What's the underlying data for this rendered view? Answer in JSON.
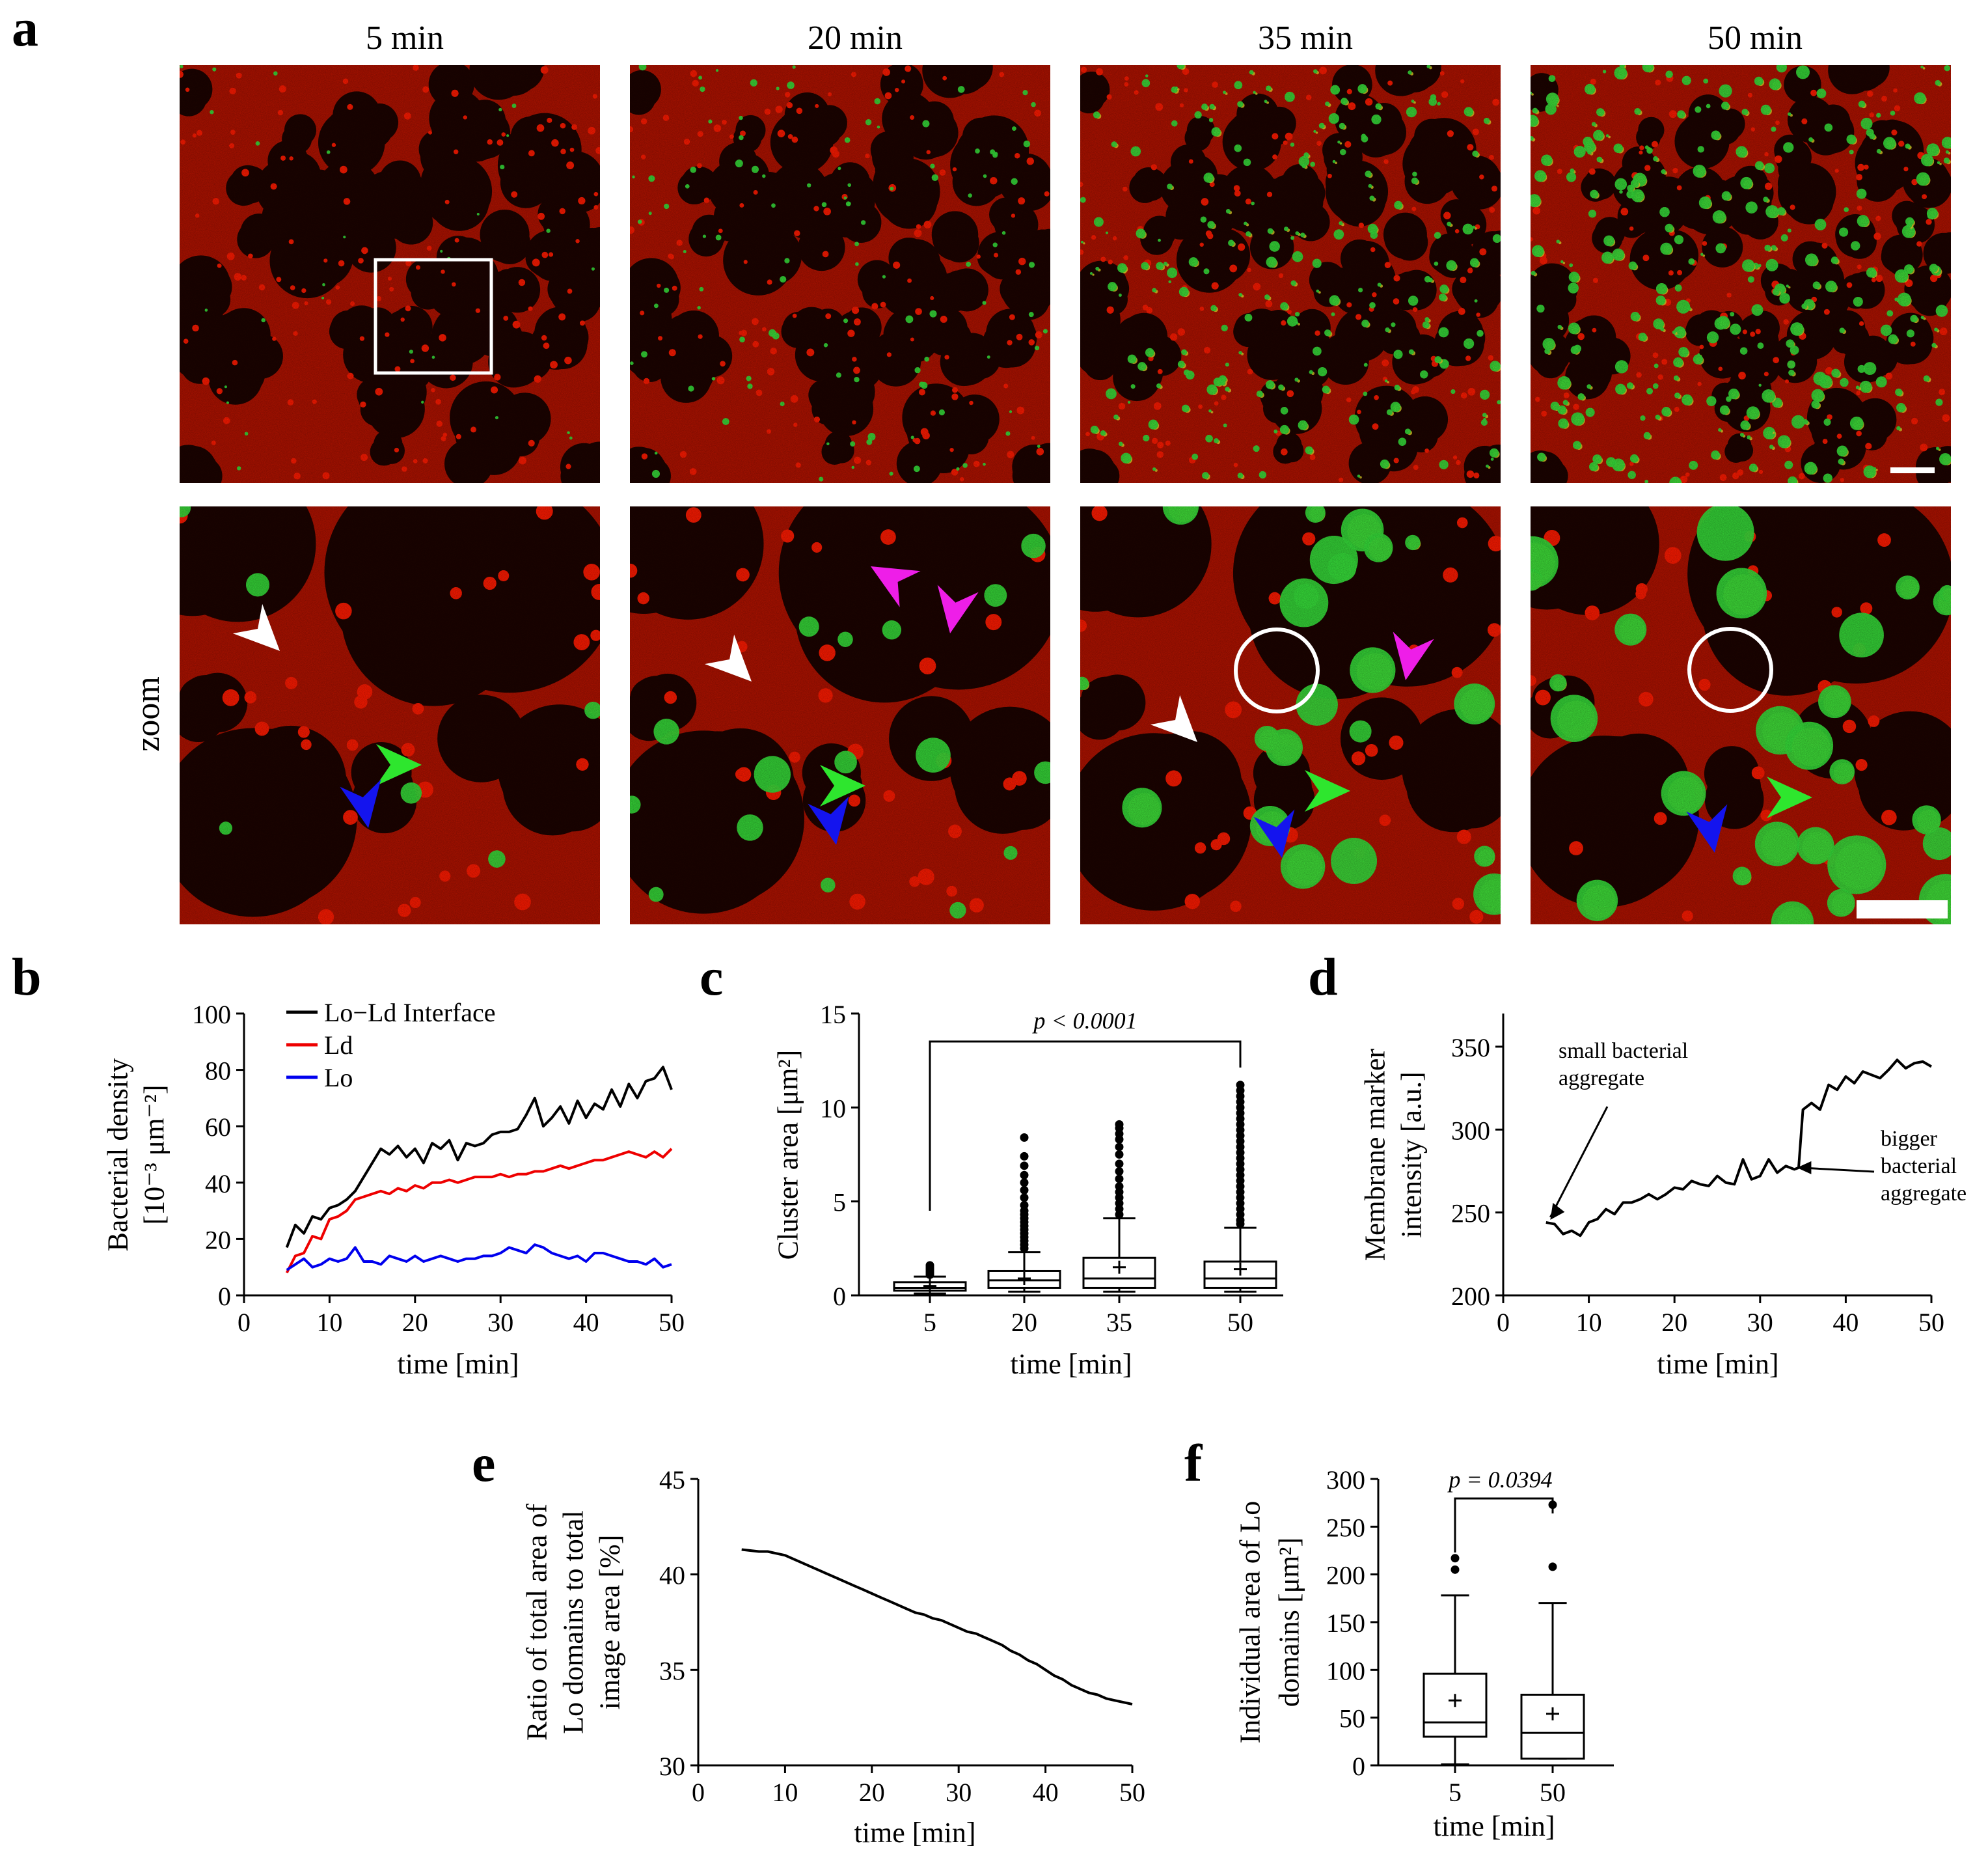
{
  "panel_letters": {
    "a": "a",
    "b": "b",
    "c": "c",
    "d": "d",
    "e": "e",
    "f": "f"
  },
  "panel_a": {
    "column_titles": [
      "5 min",
      "20 min",
      "35 min",
      "50 min"
    ],
    "zoom_label": "zoom",
    "colors": {
      "membrane": "#b01200",
      "domain": "#1c0300",
      "bacteria": "#37e03a",
      "overlap": "#e6d226",
      "marker": "#ff1a00"
    },
    "arrowhead_colors": {
      "white": "#ffffff",
      "green": "#2ee62e",
      "blue": "#1414ee",
      "magenta": "#ee1ee8"
    }
  },
  "chart_data": [
    {
      "panel": "b",
      "type": "line",
      "xlabel": "time [min]",
      "ylabel_lines": [
        "Bacterial density",
        "[10⁻³ μm⁻²]"
      ],
      "xlim": [
        0,
        50
      ],
      "ylim": [
        0,
        100
      ],
      "xticks": [
        0,
        10,
        20,
        30,
        40,
        50
      ],
      "yticks": [
        0,
        20,
        40,
        60,
        80,
        100
      ],
      "legend_position": "top-left",
      "x": [
        5,
        6,
        7,
        8,
        9,
        10,
        11,
        12,
        13,
        14,
        15,
        16,
        17,
        18,
        19,
        20,
        21,
        22,
        23,
        24,
        25,
        26,
        27,
        28,
        29,
        30,
        31,
        32,
        33,
        34,
        35,
        36,
        37,
        38,
        39,
        40,
        41,
        42,
        43,
        44,
        45,
        46,
        47,
        48,
        49,
        50
      ],
      "series": [
        {
          "name": "Lo−Ld Interface",
          "color": "#000000",
          "values": [
            17,
            25,
            22,
            28,
            27,
            31,
            32,
            34,
            37,
            42,
            47,
            52,
            50,
            53,
            49,
            52,
            47,
            54,
            52,
            55,
            48,
            54,
            53,
            54,
            57,
            58,
            58,
            59,
            64,
            70,
            60,
            63,
            67,
            61,
            69,
            63,
            68,
            66,
            73,
            67,
            75,
            70,
            76,
            77,
            81,
            73
          ]
        },
        {
          "name": "Ld",
          "color": "#ee0000",
          "values": [
            8,
            14,
            15,
            21,
            20,
            27,
            28,
            30,
            34,
            35,
            36,
            37,
            36,
            38,
            37,
            39,
            38,
            40,
            40,
            41,
            40,
            41,
            42,
            42,
            42,
            43,
            42,
            43,
            43,
            44,
            44,
            45,
            46,
            45,
            46,
            47,
            48,
            48,
            49,
            50,
            51,
            50,
            49,
            51,
            49,
            52
          ]
        },
        {
          "name": "Lo",
          "color": "#0000ee",
          "values": [
            9,
            11,
            13,
            10,
            11,
            13,
            12,
            13,
            17,
            12,
            12,
            11,
            14,
            13,
            12,
            14,
            12,
            13,
            14,
            13,
            12,
            13,
            13,
            14,
            14,
            15,
            17,
            16,
            15,
            18,
            17,
            15,
            14,
            13,
            14,
            12,
            15,
            15,
            14,
            13,
            12,
            12,
            11,
            13,
            10,
            11
          ]
        }
      ]
    },
    {
      "panel": "c",
      "type": "box",
      "xlabel": "time [min]",
      "ylabel": "Cluster area [μm²]",
      "ylim": [
        0,
        15
      ],
      "yticks": [
        0,
        5,
        10,
        15
      ],
      "categories": [
        "5",
        "20",
        "35",
        "50"
      ],
      "annotation": "p < 0.0001",
      "annotation_between": [
        "5",
        "50"
      ],
      "boxes": [
        {
          "min": 0.1,
          "q1": 0.25,
          "median": 0.4,
          "q3": 0.7,
          "max": 1.0,
          "mean": 0.5,
          "outliers": [
            1.1,
            1.2,
            1.3,
            1.4,
            1.5,
            1.6
          ]
        },
        {
          "min": 0.2,
          "q1": 0.4,
          "median": 0.8,
          "q3": 1.3,
          "max": 2.3,
          "mean": 0.9,
          "outliers": [
            2.5,
            2.7,
            2.9,
            3.1,
            3.3,
            3.5,
            3.7,
            3.9,
            4.1,
            4.3,
            4.5,
            4.8,
            5.2,
            5.6,
            6.0,
            6.4,
            6.9,
            7.4,
            8.4
          ]
        },
        {
          "min": 0.2,
          "q1": 0.4,
          "median": 0.9,
          "q3": 2.0,
          "max": 4.1,
          "mean": 1.5,
          "outliers": [
            4.3,
            4.6,
            4.9,
            5.2,
            5.5,
            5.8,
            6.2,
            6.6,
            7.0,
            7.5,
            7.9,
            8.3,
            8.6,
            8.9,
            9.1
          ]
        },
        {
          "min": 0.2,
          "q1": 0.4,
          "median": 0.9,
          "q3": 1.8,
          "max": 3.6,
          "mean": 1.4,
          "outliers": [
            3.8,
            4.0,
            4.3,
            4.6,
            4.9,
            5.2,
            5.5,
            5.8,
            6.1,
            6.4,
            6.7,
            7.0,
            7.3,
            7.6,
            7.9,
            8.2,
            8.5,
            8.8,
            9.1,
            9.4,
            9.7,
            10.0,
            10.3,
            10.6,
            10.9,
            11.2
          ]
        }
      ]
    },
    {
      "panel": "d",
      "type": "line",
      "xlabel": "time [min]",
      "ylabel_lines": [
        "Membrane marker",
        "intensity [a.u.]"
      ],
      "xlim": [
        0,
        50
      ],
      "ylim": [
        200,
        370
      ],
      "xticks": [
        0,
        10,
        20,
        30,
        40,
        50
      ],
      "yticks": [
        200,
        250,
        300,
        350
      ],
      "annotations": [
        {
          "lines": [
            "small bacterial",
            "aggregate"
          ],
          "points_to": [
            5.5,
            244
          ]
        },
        {
          "lines": [
            "bigger",
            "bacterial",
            "aggregate"
          ],
          "points_to": [
            34,
            277
          ]
        }
      ],
      "x": [
        5,
        6,
        7,
        8,
        9,
        10,
        11,
        12,
        13,
        14,
        15,
        16,
        17,
        18,
        19,
        20,
        21,
        22,
        23,
        24,
        25,
        26,
        27,
        28,
        29,
        30,
        31,
        32,
        33,
        34,
        34.5,
        35,
        36,
        37,
        38,
        39,
        40,
        41,
        42,
        43,
        44,
        45,
        46,
        47,
        48,
        49,
        50
      ],
      "series": [
        {
          "name": "",
          "color": "#000000",
          "values": [
            244,
            243,
            237,
            239,
            236,
            244,
            246,
            252,
            249,
            256,
            256,
            258,
            261,
            258,
            261,
            265,
            264,
            269,
            267,
            266,
            272,
            268,
            267,
            282,
            270,
            272,
            282,
            274,
            278,
            276,
            277,
            312,
            316,
            312,
            327,
            324,
            332,
            328,
            335,
            333,
            331,
            336,
            342,
            337,
            340,
            341,
            338
          ]
        }
      ]
    },
    {
      "panel": "e",
      "type": "line",
      "xlabel": "time [min]",
      "ylabel_lines": [
        "Ratio of total area of",
        "Lo domains to total",
        "image area [%]"
      ],
      "xlim": [
        0,
        50
      ],
      "ylim": [
        30,
        45
      ],
      "xticks": [
        0,
        10,
        20,
        30,
        40,
        50
      ],
      "yticks": [
        30,
        35,
        40,
        45
      ],
      "x": [
        5,
        6,
        7,
        8,
        9,
        10,
        11,
        12,
        13,
        14,
        15,
        16,
        17,
        18,
        19,
        20,
        21,
        22,
        23,
        24,
        25,
        26,
        27,
        28,
        29,
        30,
        31,
        32,
        33,
        34,
        35,
        36,
        37,
        38,
        39,
        40,
        41,
        42,
        43,
        44,
        45,
        46,
        47,
        48,
        49,
        50
      ],
      "series": [
        {
          "name": "",
          "color": "#000000",
          "values": [
            41.3,
            41.25,
            41.2,
            41.2,
            41.1,
            41.0,
            40.8,
            40.6,
            40.4,
            40.2,
            40.0,
            39.8,
            39.6,
            39.4,
            39.2,
            39.0,
            38.8,
            38.6,
            38.4,
            38.2,
            38.0,
            37.9,
            37.7,
            37.6,
            37.4,
            37.2,
            37.0,
            36.9,
            36.7,
            36.5,
            36.3,
            36.0,
            35.8,
            35.5,
            35.3,
            35.0,
            34.7,
            34.5,
            34.2,
            34.0,
            33.8,
            33.7,
            33.5,
            33.4,
            33.3,
            33.2
          ]
        }
      ]
    },
    {
      "panel": "f",
      "type": "box",
      "xlabel": "time [min]",
      "ylabel_lines": [
        "Individual area of Lo",
        "domains [μm²]"
      ],
      "ylim": [
        0,
        300
      ],
      "yticks": [
        0,
        50,
        100,
        150,
        200,
        250,
        300
      ],
      "categories": [
        "5",
        "50"
      ],
      "annotation": "p = 0.0394",
      "annotation_between": [
        "5",
        "50"
      ],
      "boxes": [
        {
          "min": 1,
          "q1": 30,
          "median": 45,
          "q3": 96,
          "max": 178,
          "mean": 68,
          "outliers": [
            205,
            217
          ]
        },
        {
          "min": 7,
          "q1": 7,
          "median": 34,
          "q3": 74,
          "max": 170,
          "mean": 54,
          "outliers": [
            208,
            273
          ]
        }
      ]
    }
  ]
}
